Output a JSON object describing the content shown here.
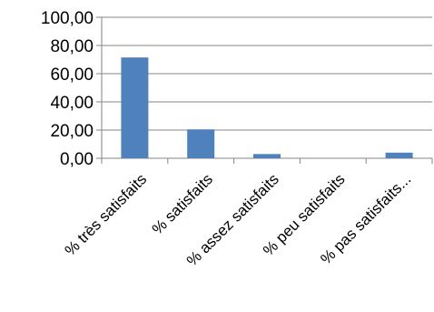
{
  "chart_data": {
    "type": "bar",
    "categories": [
      "% très satisfaits",
      "% satisfaits",
      "% assez satisfaits",
      "% peu satisfaits",
      "% pas satisfaits..."
    ],
    "values": [
      71.5,
      20.5,
      3.0,
      0.0,
      4.0
    ],
    "ylim": [
      0,
      100
    ],
    "yticks": [
      "0,00",
      "20,00",
      "40,00",
      "60,00",
      "80,00",
      "100,00"
    ],
    "grid": true,
    "legend": false,
    "bar_color": "#4F81BD",
    "grid_color": "#868686"
  }
}
